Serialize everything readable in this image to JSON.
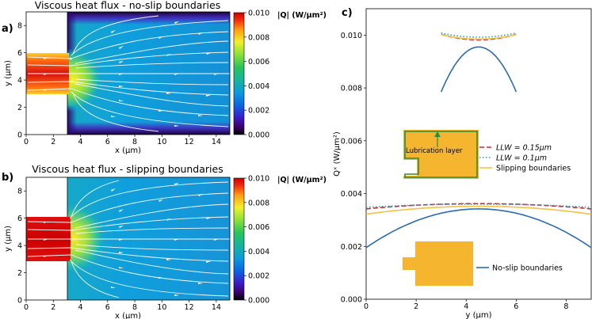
{
  "chart_data": [
    {
      "type": "heatmap",
      "panel_label": "a)",
      "title": "Viscous heat flux - no-slip boundaries",
      "xlabel": "x (μm)",
      "ylabel": "y (μm)",
      "xlim": [
        0,
        15
      ],
      "ylim": [
        0,
        9
      ],
      "xticks": [
        "0",
        "2",
        "4",
        "6",
        "8",
        "10",
        "12",
        "14"
      ],
      "yticks": [
        "0",
        "2",
        "4",
        "6",
        "8"
      ],
      "geometry": {
        "inlet_x_end": 3,
        "inlet_y": [
          3,
          6
        ]
      },
      "colorbar": {
        "label": "|Q| (W/μm²)",
        "range": [
          0,
          0.01
        ],
        "ticks": [
          "0.000",
          "0.002",
          "0.004",
          "0.006",
          "0.008",
          "0.010"
        ]
      }
    },
    {
      "type": "heatmap",
      "panel_label": "b)",
      "title": "Viscous heat flux - slipping boundaries",
      "xlabel": "x (μm)",
      "ylabel": "y (μm)",
      "xlim": [
        0,
        15
      ],
      "ylim": [
        0,
        9
      ],
      "xticks": [
        "0",
        "2",
        "4",
        "6",
        "8",
        "10",
        "12",
        "14"
      ],
      "yticks": [
        "0",
        "2",
        "4",
        "6",
        "8"
      ],
      "geometry": {
        "inlet_x_end": 3,
        "inlet_y": [
          3,
          6
        ]
      },
      "colorbar": {
        "label": "|Q| (W/μm²)",
        "range": [
          0,
          0.01
        ],
        "ticks": [
          "0.000",
          "0.002",
          "0.004",
          "0.006",
          "0.008",
          "0.010"
        ]
      }
    },
    {
      "type": "line",
      "panel_label": "c)",
      "xlabel": "y (μm)",
      "ylabel": "Qˣ (W/μm²)",
      "xlim": [
        0,
        9
      ],
      "ylim": [
        0,
        0.011
      ],
      "xticks": [
        0,
        2,
        4,
        6,
        8
      ],
      "yticks": [
        0,
        0.002,
        0.004,
        0.006,
        0.008,
        0.01
      ],
      "ytick_labels": [
        "0.000",
        "0.002",
        "0.004",
        "0.006",
        "0.008",
        "0.010"
      ],
      "series": [
        {
          "name": "LLW = 0.15μm",
          "legend_label": "LLW = 0.15μm",
          "color": "#d62728",
          "dash": "6,3",
          "x": [
            0,
            4.5,
            9
          ],
          "y": [
            0.00342,
            0.00362,
            0.00342
          ]
        },
        {
          "name": "LLW = 0.1μm",
          "legend_label": "LLW = 0.1μm",
          "color": "#1f9fc8",
          "dash": "1.5,2.5",
          "x": [
            0,
            4.5,
            9
          ],
          "y": [
            0.00348,
            0.0036,
            0.00348
          ]
        },
        {
          "name": "Slipping boundaries",
          "legend_label": "Slipping boundaries",
          "color": "#f5c142",
          "dash": "",
          "x": [
            0,
            4.5,
            9
          ],
          "y": [
            0.00322,
            0.00352,
            0.00322
          ]
        },
        {
          "name": "No-slip boundaries",
          "legend_label": "No-slip boundaries",
          "color": "#2b6cb0",
          "dash": "",
          "x": [
            0,
            4.5,
            9
          ],
          "y": [
            0.00195,
            0.00342,
            0.00195
          ]
        }
      ],
      "inset_series": [
        {
          "name": "LLW = 0.15μm",
          "color": "#d62728",
          "dash": "6,3",
          "x": [
            3,
            4.5,
            6
          ],
          "y": [
            0.01003,
            0.00982,
            0.01003
          ]
        },
        {
          "name": "LLW = 0.1μm",
          "color": "#1f9fc8",
          "dash": "1.5,2.5",
          "x": [
            3,
            4.5,
            6
          ],
          "y": [
            0.01008,
            0.00992,
            0.01008
          ]
        },
        {
          "name": "Slipping boundaries",
          "color": "#f5c142",
          "dash": "",
          "x": [
            3,
            4.5,
            6
          ],
          "y": [
            0.01002,
            0.00985,
            0.01002
          ]
        },
        {
          "name": "No-slip boundaries",
          "color": "#2b6cb0",
          "dash": "",
          "x": [
            3,
            4.5,
            6
          ],
          "y": [
            0.00785,
            0.00955,
            0.00785
          ]
        }
      ],
      "annotation": "Lubrication layer"
    }
  ]
}
